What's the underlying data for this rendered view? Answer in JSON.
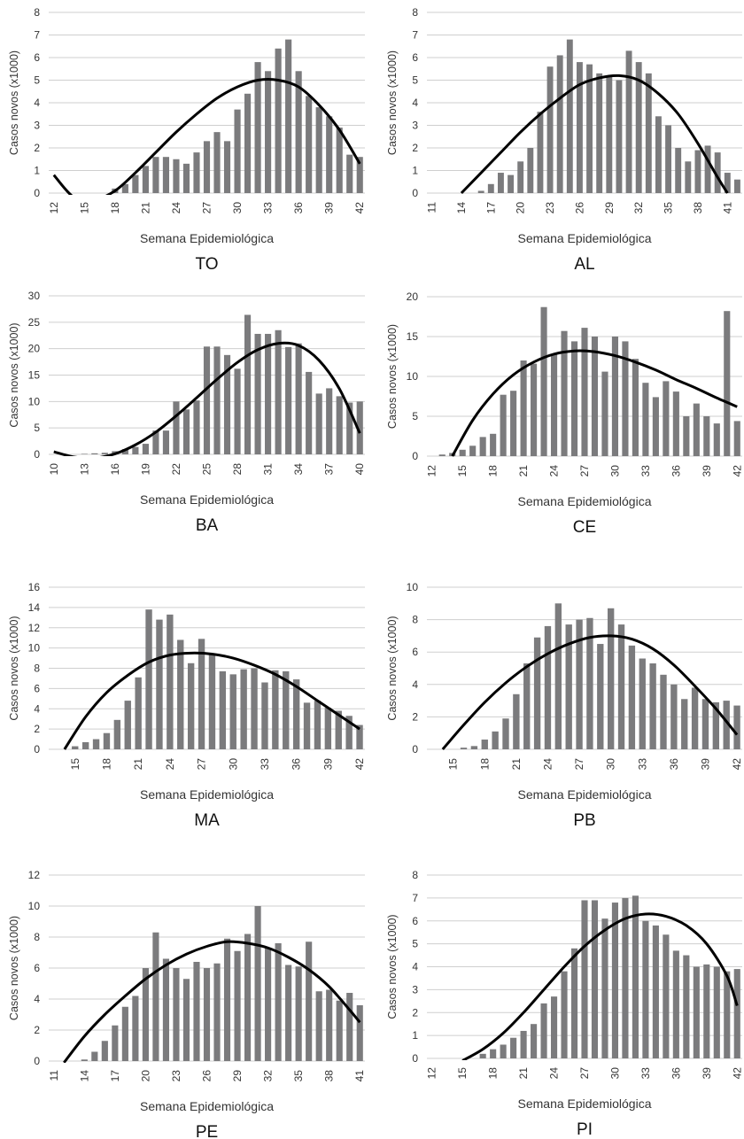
{
  "chart_data": [
    {
      "type": "bar",
      "title": "TO",
      "xlabel": "Semana Epidemiológica",
      "ylabel": "Casos novos (x1000)",
      "ylim": [
        0,
        8
      ],
      "yticks": [
        0,
        1,
        2,
        3,
        4,
        5,
        6,
        7,
        8
      ],
      "xticks": [
        12,
        15,
        18,
        21,
        24,
        27,
        30,
        33,
        36,
        39,
        42
      ],
      "x": [
        12,
        13,
        14,
        15,
        16,
        17,
        18,
        19,
        20,
        21,
        22,
        23,
        24,
        25,
        26,
        27,
        28,
        29,
        30,
        31,
        32,
        33,
        34,
        35,
        36,
        37,
        38,
        39,
        40,
        41,
        42
      ],
      "values": [
        0,
        0,
        0,
        0,
        0,
        0,
        0.2,
        0.4,
        0.8,
        1.2,
        1.6,
        1.6,
        1.5,
        1.3,
        1.8,
        2.3,
        2.7,
        2.3,
        3.7,
        4.4,
        5.8,
        5.4,
        6.4,
        6.8,
        5.4,
        4.3,
        3.8,
        3.4,
        2.9,
        1.7,
        1.6
      ],
      "grid": true,
      "legend": "none",
      "trend": {
        "label": "",
        "x": [
          12,
          14,
          16,
          18,
          20,
          22,
          24,
          26,
          28,
          30,
          32,
          34,
          36,
          38,
          40,
          42
        ],
        "values": [
          0.8,
          -0.2,
          -0.3,
          0.1,
          0.9,
          1.8,
          2.7,
          3.5,
          4.2,
          4.7,
          5.0,
          5.0,
          4.7,
          3.9,
          2.8,
          1.3
        ]
      }
    },
    {
      "type": "bar",
      "title": "AL",
      "xlabel": "Semana Epidemiológica",
      "ylabel": "Casos novos (x1000)",
      "ylim": [
        0,
        8
      ],
      "yticks": [
        0,
        1,
        2,
        3,
        4,
        5,
        6,
        7,
        8
      ],
      "xticks": [
        11,
        14,
        17,
        20,
        23,
        26,
        29,
        32,
        35,
        38,
        41
      ],
      "x": [
        11,
        12,
        13,
        14,
        15,
        16,
        17,
        18,
        19,
        20,
        21,
        22,
        23,
        24,
        25,
        26,
        27,
        28,
        29,
        30,
        31,
        32,
        33,
        34,
        35,
        36,
        37,
        38,
        39,
        40,
        41,
        42
      ],
      "values": [
        0,
        0,
        0,
        0,
        0,
        0.1,
        0.4,
        0.9,
        0.8,
        1.4,
        2.0,
        3.6,
        5.6,
        6.1,
        6.8,
        5.8,
        5.7,
        5.3,
        5.2,
        5.0,
        6.3,
        5.8,
        5.3,
        3.4,
        3.0,
        2.0,
        1.4,
        1.9,
        2.1,
        1.8,
        0.9,
        0.6
      ],
      "grid": true,
      "legend": "none",
      "trend": {
        "label": "",
        "x": [
          14,
          16,
          18,
          20,
          22,
          24,
          26,
          28,
          30,
          32,
          34,
          36,
          38,
          40,
          41
        ],
        "values": [
          0.0,
          0.9,
          1.8,
          2.7,
          3.5,
          4.2,
          4.8,
          5.1,
          5.2,
          5.0,
          4.4,
          3.5,
          2.2,
          0.7,
          0.0
        ]
      }
    },
    {
      "type": "bar",
      "title": "BA",
      "xlabel": "Semana Epidemiológica",
      "ylabel": "Casos novos (x1000)",
      "ylim": [
        0,
        30
      ],
      "yticks": [
        0,
        5,
        10,
        15,
        20,
        25,
        30
      ],
      "xticks": [
        10,
        13,
        16,
        19,
        22,
        25,
        28,
        31,
        34,
        37,
        40
      ],
      "x": [
        10,
        11,
        12,
        13,
        14,
        15,
        16,
        17,
        18,
        19,
        20,
        21,
        22,
        23,
        24,
        25,
        26,
        27,
        28,
        29,
        30,
        31,
        32,
        33,
        34,
        35,
        36,
        37,
        38,
        39,
        40
      ],
      "values": [
        0,
        0,
        0,
        0.1,
        0.2,
        0.3,
        0.6,
        1.0,
        1.4,
        2.0,
        4.5,
        4.5,
        10.0,
        8.5,
        10.2,
        20.4,
        20.4,
        18.8,
        16.2,
        26.4,
        22.8,
        22.8,
        23.5,
        20.3,
        21.0,
        15.6,
        11.5,
        12.5,
        11.0,
        9.8,
        10.0
      ],
      "grid": true,
      "legend": "none",
      "trend": {
        "label": "",
        "x": [
          10,
          12,
          14,
          16,
          18,
          20,
          22,
          24,
          26,
          28,
          30,
          32,
          34,
          36,
          38,
          40
        ],
        "values": [
          0.5,
          -0.5,
          -0.7,
          0.1,
          1.8,
          4.2,
          7.3,
          10.7,
          14.2,
          17.4,
          19.8,
          21.0,
          20.6,
          17.8,
          12.4,
          4.0
        ]
      }
    },
    {
      "type": "bar",
      "title": "CE",
      "xlabel": "Semana Epidemiológica",
      "ylabel": "Casos novos (x1000)",
      "ylim": [
        0,
        20
      ],
      "yticks": [
        0,
        5,
        10,
        15,
        20
      ],
      "xticks": [
        12,
        15,
        18,
        21,
        24,
        27,
        30,
        33,
        36,
        39,
        42
      ],
      "x": [
        12,
        13,
        14,
        15,
        16,
        17,
        18,
        19,
        20,
        21,
        22,
        23,
        24,
        25,
        26,
        27,
        28,
        29,
        30,
        31,
        32,
        33,
        34,
        35,
        36,
        37,
        38,
        39,
        40,
        41,
        42
      ],
      "values": [
        0,
        0.2,
        0.4,
        0.8,
        1.3,
        2.4,
        2.8,
        7.7,
        8.2,
        12.0,
        11.6,
        18.7,
        12.8,
        15.7,
        14.4,
        16.1,
        15.0,
        10.6,
        15.0,
        14.4,
        12.2,
        9.2,
        7.4,
        9.4,
        8.1,
        5.0,
        6.6,
        5.0,
        4.1,
        18.2,
        4.4
      ],
      "grid": true,
      "legend": "none",
      "trend": {
        "label": "",
        "x": [
          14,
          16,
          18,
          20,
          22,
          24,
          26,
          28,
          30,
          32,
          34,
          36,
          38,
          40,
          42
        ],
        "values": [
          0.0,
          4.5,
          7.8,
          10.2,
          11.8,
          12.8,
          13.2,
          13.1,
          12.6,
          11.8,
          10.8,
          9.6,
          8.5,
          7.3,
          6.2
        ]
      }
    },
    {
      "type": "bar",
      "title": "MA",
      "xlabel": "Semana Epidemiológica",
      "ylabel": "Casos novos (x1000)",
      "ylim": [
        0,
        16
      ],
      "yticks": [
        0,
        2,
        4,
        6,
        8,
        10,
        12,
        14,
        16
      ],
      "xticks": [
        15,
        18,
        21,
        24,
        27,
        30,
        33,
        36,
        39,
        42
      ],
      "x": [
        13,
        14,
        15,
        16,
        17,
        18,
        19,
        20,
        21,
        22,
        23,
        24,
        25,
        26,
        27,
        28,
        29,
        30,
        31,
        32,
        33,
        34,
        35,
        36,
        37,
        38,
        39,
        40,
        41,
        42
      ],
      "values": [
        0,
        0,
        0.3,
        0.7,
        1.0,
        1.6,
        2.9,
        4.8,
        7.1,
        13.8,
        12.8,
        13.3,
        10.8,
        8.5,
        10.9,
        9.4,
        7.7,
        7.4,
        7.9,
        8.0,
        6.6,
        7.8,
        7.7,
        6.9,
        4.6,
        4.8,
        4.1,
        3.8,
        3.3,
        2.4
      ],
      "grid": true,
      "legend": "none",
      "trend": {
        "label": "",
        "x": [
          14,
          16,
          18,
          20,
          22,
          24,
          26,
          28,
          30,
          32,
          34,
          36,
          38,
          40,
          42
        ],
        "values": [
          0.0,
          3.2,
          5.6,
          7.3,
          8.6,
          9.3,
          9.5,
          9.4,
          9.0,
          8.3,
          7.4,
          6.2,
          4.8,
          3.4,
          2.0
        ]
      }
    },
    {
      "type": "bar",
      "title": "PB",
      "xlabel": "Semana Epidemiológica",
      "ylabel": "Casos novos (x1000)",
      "ylim": [
        0,
        10
      ],
      "yticks": [
        0,
        2,
        4,
        6,
        8,
        10
      ],
      "xticks": [
        15,
        18,
        21,
        24,
        27,
        30,
        33,
        36,
        39,
        42
      ],
      "x": [
        13,
        14,
        15,
        16,
        17,
        18,
        19,
        20,
        21,
        22,
        23,
        24,
        25,
        26,
        27,
        28,
        29,
        30,
        31,
        32,
        33,
        34,
        35,
        36,
        37,
        38,
        39,
        40,
        41,
        42
      ],
      "values": [
        0,
        0,
        0,
        0.1,
        0.2,
        0.6,
        1.1,
        1.9,
        3.4,
        5.3,
        6.9,
        7.6,
        9.0,
        7.7,
        8.0,
        8.1,
        6.5,
        8.7,
        7.7,
        6.4,
        5.6,
        5.3,
        4.6,
        4.0,
        3.1,
        3.8,
        3.1,
        2.9,
        3.0,
        2.7
      ],
      "grid": true,
      "legend": "none",
      "trend": {
        "label": "",
        "x": [
          14,
          16,
          18,
          20,
          22,
          24,
          26,
          28,
          30,
          32,
          34,
          36,
          38,
          40,
          42
        ],
        "values": [
          0.0,
          1.5,
          2.9,
          4.1,
          5.1,
          5.9,
          6.5,
          6.9,
          7.0,
          6.8,
          6.2,
          5.2,
          3.9,
          2.5,
          0.9
        ]
      }
    },
    {
      "type": "bar",
      "title": "PE",
      "xlabel": "Semana Epidemiológica",
      "ylabel": "Casos novos (x1000)",
      "ylim": [
        0,
        12
      ],
      "yticks": [
        0,
        2,
        4,
        6,
        8,
        10,
        12
      ],
      "xticks": [
        11,
        14,
        17,
        20,
        23,
        26,
        29,
        32,
        35,
        38,
        41
      ],
      "x": [
        11,
        12,
        13,
        14,
        15,
        16,
        17,
        18,
        19,
        20,
        21,
        22,
        23,
        24,
        25,
        26,
        27,
        28,
        29,
        30,
        31,
        32,
        33,
        34,
        35,
        36,
        37,
        38,
        39,
        40,
        41
      ],
      "values": [
        0,
        0,
        0,
        0.1,
        0.6,
        1.3,
        2.3,
        3.5,
        4.2,
        6.0,
        8.3,
        6.6,
        6.0,
        5.3,
        6.4,
        6.0,
        6.3,
        7.9,
        7.1,
        8.2,
        10.0,
        7.3,
        7.6,
        6.2,
        6.1,
        7.7,
        4.5,
        4.6,
        3.9,
        4.4,
        3.6
      ],
      "grid": true,
      "legend": "none",
      "trend": {
        "label": "",
        "x": [
          12,
          14,
          16,
          18,
          20,
          22,
          24,
          26,
          28,
          30,
          32,
          34,
          36,
          38,
          40,
          41
        ],
        "values": [
          -0.1,
          1.6,
          3.0,
          4.2,
          5.3,
          6.2,
          6.9,
          7.4,
          7.7,
          7.6,
          7.3,
          6.7,
          5.9,
          4.8,
          3.3,
          2.5
        ]
      }
    },
    {
      "type": "bar",
      "title": "PI",
      "xlabel": "Semana Epidemiológica",
      "ylabel": "Casos novos (x1000)",
      "ylim": [
        0,
        8
      ],
      "yticks": [
        0,
        1,
        2,
        3,
        4,
        5,
        6,
        7,
        8
      ],
      "xticks": [
        12,
        15,
        18,
        21,
        24,
        27,
        30,
        33,
        36,
        39,
        42
      ],
      "x": [
        12,
        13,
        14,
        15,
        16,
        17,
        18,
        19,
        20,
        21,
        22,
        23,
        24,
        25,
        26,
        27,
        28,
        29,
        30,
        31,
        32,
        33,
        34,
        35,
        36,
        37,
        38,
        39,
        40,
        41,
        42
      ],
      "values": [
        0,
        0,
        0,
        0,
        0,
        0.2,
        0.4,
        0.6,
        0.9,
        1.2,
        1.5,
        2.4,
        2.7,
        3.8,
        4.8,
        6.9,
        6.9,
        6.1,
        6.8,
        7.0,
        7.1,
        6.0,
        5.8,
        5.4,
        4.7,
        4.5,
        4.0,
        4.1,
        4.0,
        3.8,
        3.9
      ],
      "grid": true,
      "legend": "none",
      "trend": {
        "label": "",
        "x": [
          15,
          17,
          19,
          21,
          23,
          25,
          27,
          29,
          31,
          33,
          35,
          37,
          39,
          41,
          42
        ],
        "values": [
          -0.1,
          0.4,
          1.1,
          2.0,
          3.0,
          4.0,
          4.9,
          5.6,
          6.1,
          6.3,
          6.2,
          5.8,
          5.0,
          3.6,
          2.3
        ]
      }
    }
  ]
}
